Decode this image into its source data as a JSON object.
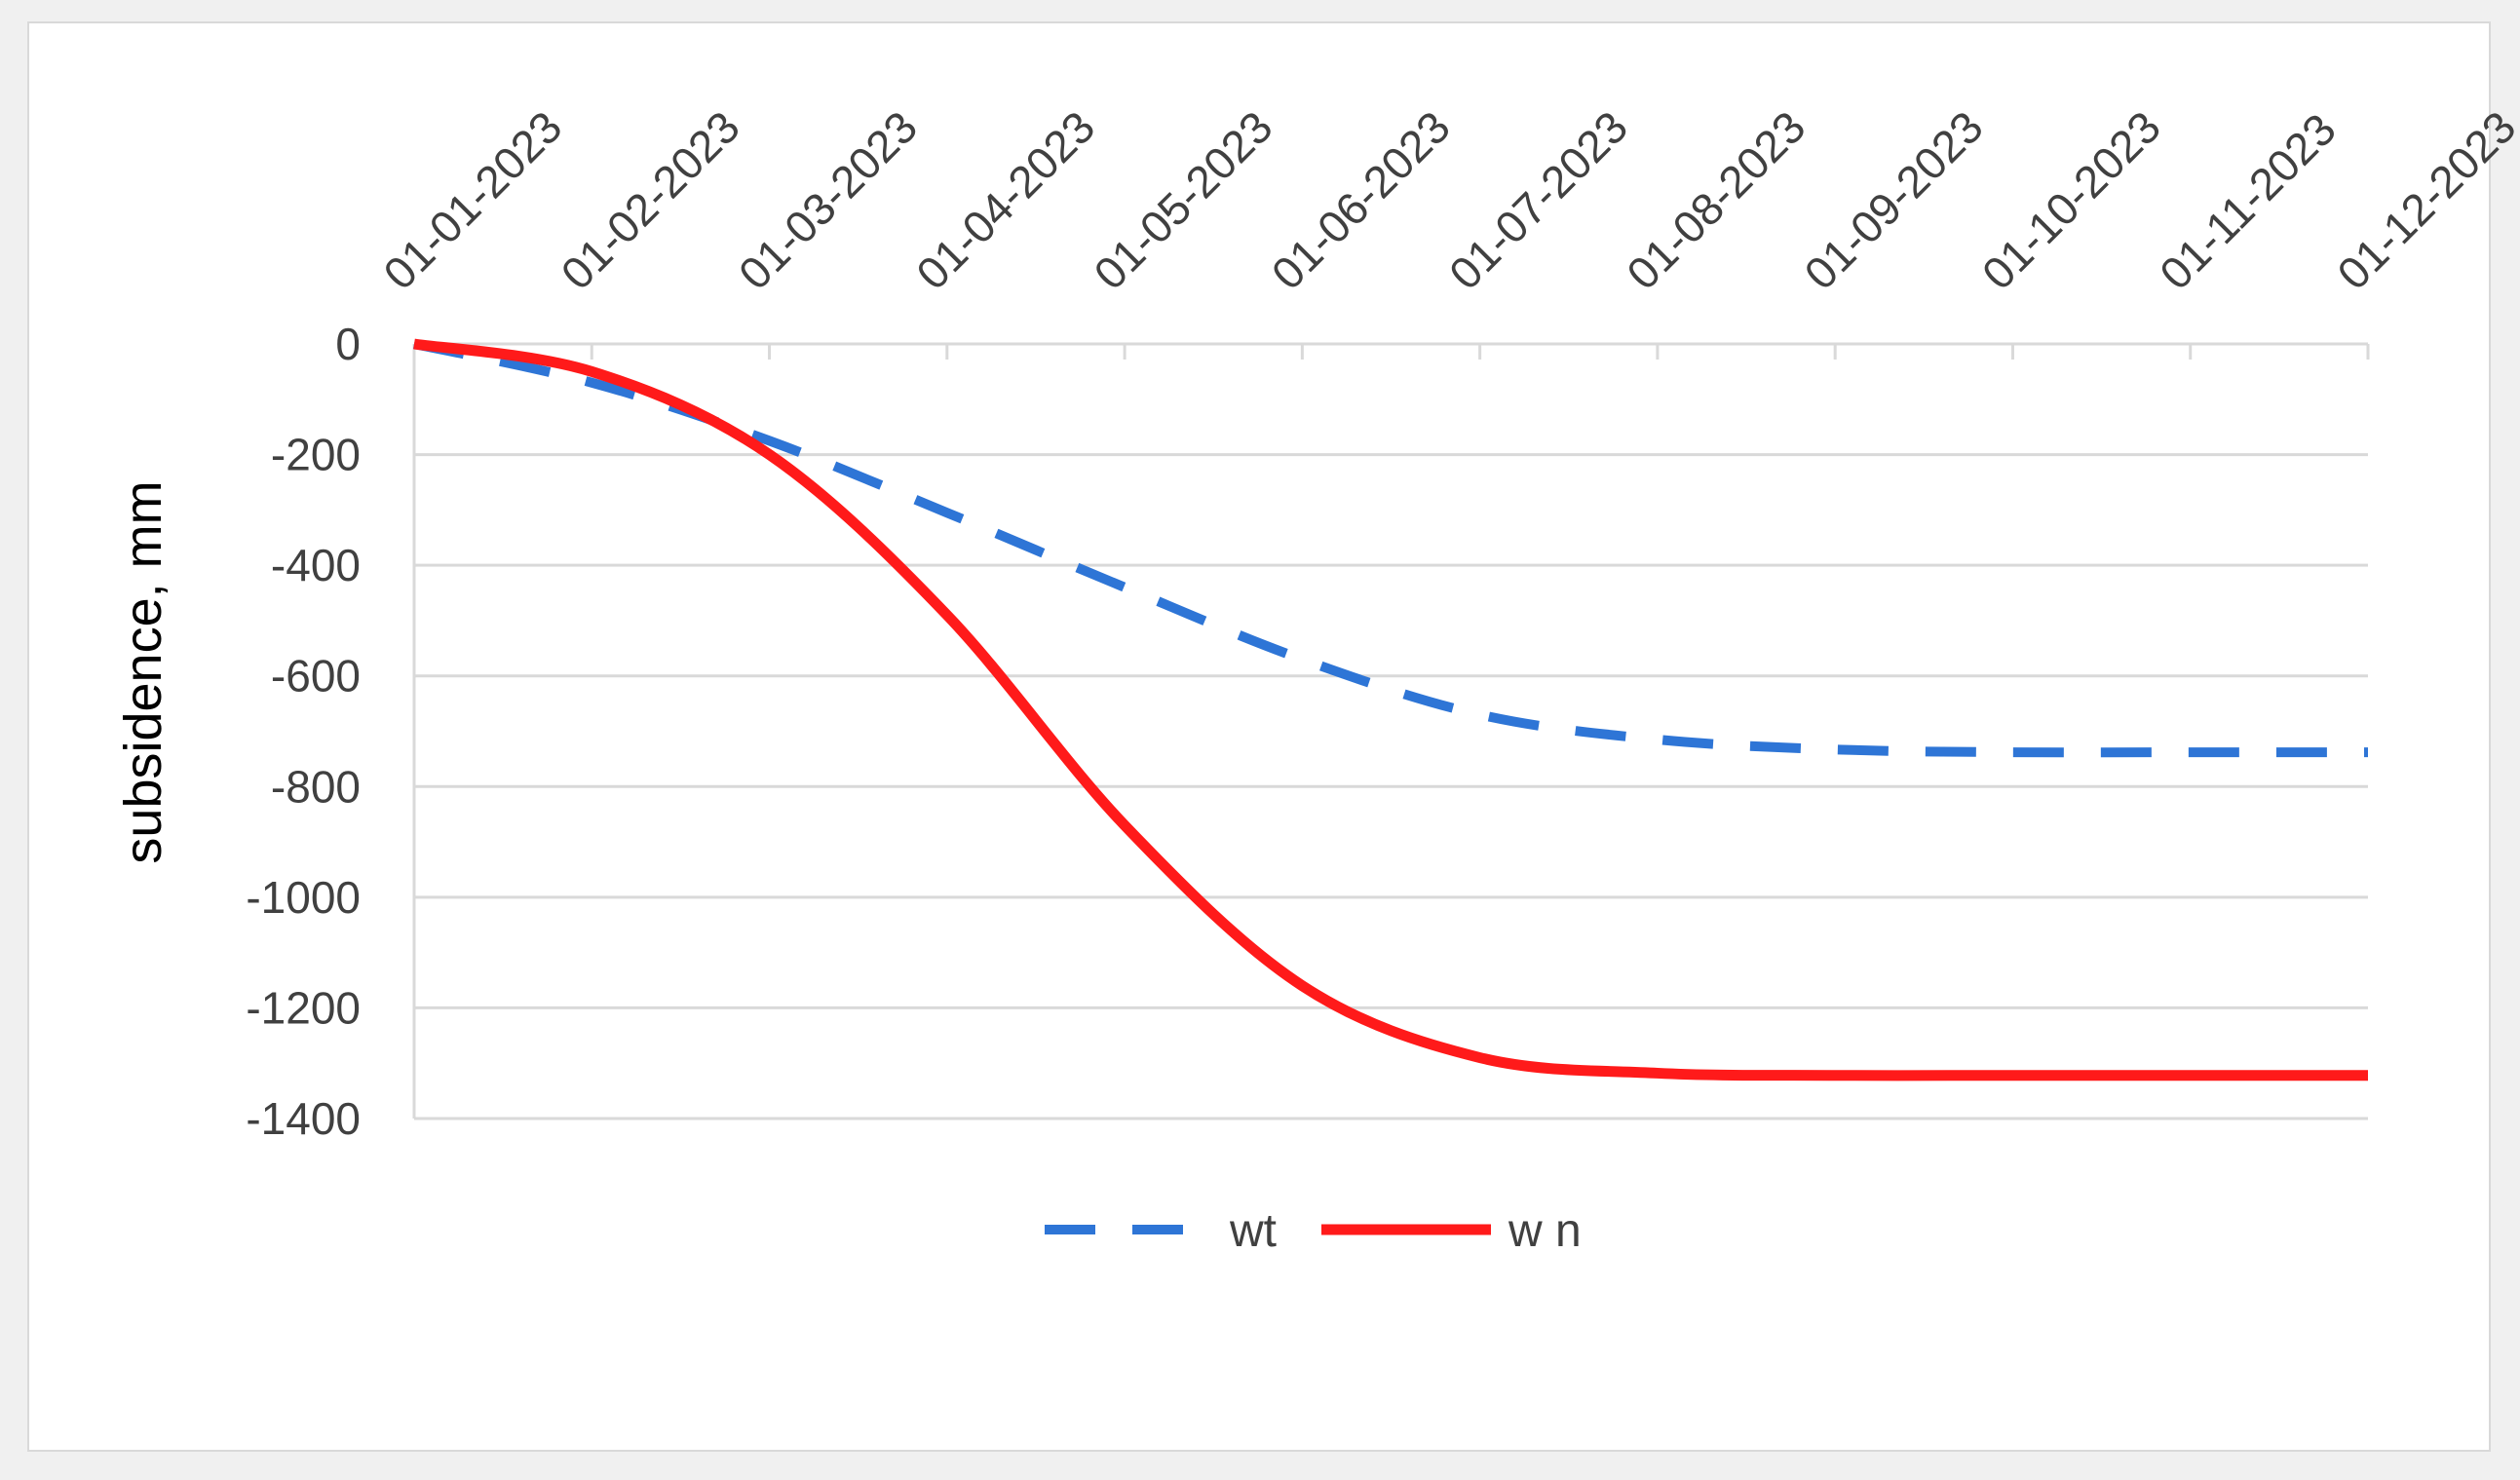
{
  "chart_data": {
    "type": "line",
    "title": "",
    "xlabel": "",
    "ylabel": "subsidence, mm",
    "x_axis_position": "top",
    "categories": [
      "01-01-2023",
      "01-02-2023",
      "01-03-2023",
      "01-04-2023",
      "01-05-2023",
      "01-06-2023",
      "01-07-2023",
      "01-08-2023",
      "01-09-2023",
      "01-10-2023",
      "01-11-2023",
      "01-12-2023"
    ],
    "yticks": [
      "0",
      "-200",
      "-400",
      "-600",
      "-800",
      "-1000",
      "-1200",
      "-1400"
    ],
    "ylim": [
      -1400,
      0
    ],
    "grid": true,
    "legend": "bottom",
    "series": [
      {
        "name": "wt",
        "color": "#2e75d6",
        "style": "dashed",
        "values": [
          0,
          -70,
          -175,
          -305,
          -440,
          -570,
          -670,
          -715,
          -733,
          -738,
          -738,
          -738
        ]
      },
      {
        "name": "w n",
        "color": "#ff1a1a",
        "style": "solid",
        "values": [
          0,
          -50,
          -200,
          -490,
          -870,
          -1160,
          -1290,
          -1318,
          -1322,
          -1322,
          -1322,
          -1322
        ]
      }
    ]
  }
}
